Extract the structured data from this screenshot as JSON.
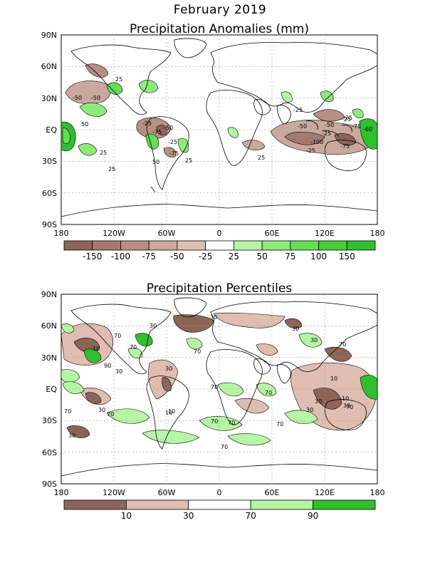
{
  "figure": {
    "title": "February 2019"
  },
  "panels": [
    {
      "title": "Precipitation Anomalies (mm)",
      "lat_labels": [
        "90N",
        "60N",
        "30N",
        "EQ",
        "30S",
        "60S",
        "90S"
      ],
      "lon_labels": [
        "180",
        "120W",
        "60W",
        "0",
        "60E",
        "120E",
        "180"
      ],
      "contour_labels": [
        "25",
        "-50",
        "50",
        "-50",
        "25",
        "-25",
        "-75",
        "-25",
        "-50",
        "-75",
        "-25",
        "-50",
        "-100",
        "-25",
        "-25",
        "-75",
        "-50",
        "-25",
        "-60",
        "25",
        "-75",
        "25",
        "50",
        "25",
        "-25"
      ],
      "colorbar": {
        "labels": [
          "-150",
          "-100",
          "-75",
          "-50",
          "-25",
          "25",
          "50",
          "75",
          "100",
          "150"
        ],
        "colors": [
          "#8c6458",
          "#a57a6e",
          "#b88f83",
          "#caa89d",
          "#e0bdb1",
          "#ffffff",
          "#b5f5a5",
          "#8ceb78",
          "#63de55",
          "#45cf3a",
          "#2fbf2f"
        ]
      }
    },
    {
      "title": "Precipitation Percentiles",
      "lat_labels": [
        "90N",
        "60N",
        "30N",
        "EQ",
        "30S",
        "60S",
        "90S"
      ],
      "lon_labels": [
        "180",
        "120W",
        "60W",
        "0",
        "60E",
        "120E",
        "180"
      ],
      "contour_labels": [
        "30",
        "70",
        "70",
        "10",
        "70",
        "90",
        "30",
        "30",
        "70",
        "30",
        "70",
        "10",
        "70",
        "30",
        "70",
        "10",
        "30",
        "30",
        "10",
        "30",
        "70",
        "70",
        "70",
        "30",
        "70",
        "30",
        "10",
        "70",
        "70",
        "30"
      ],
      "colorbar": {
        "labels": [
          "10",
          "30",
          "70",
          "90"
        ],
        "colors": [
          "#8c6458",
          "#e0bdb1",
          "#ffffff",
          "#b5f5a5",
          "#2fbf2f"
        ]
      }
    }
  ]
}
